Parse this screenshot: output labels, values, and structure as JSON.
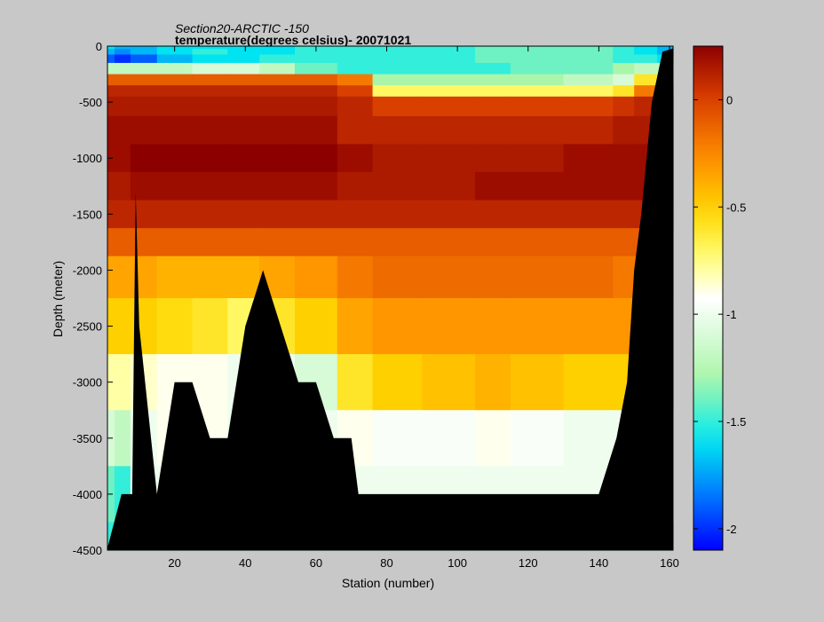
{
  "chart_data": {
    "type": "heatmap",
    "title": "Section20-ARCTIC  -150",
    "subtitle": "temperature(degrees  celsius)- 20071021",
    "xlabel": "Station (number)",
    "ylabel": "Depth (meter)",
    "xlim": [
      1,
      161
    ],
    "ylim": [
      -4500,
      0
    ],
    "x_ticks": [
      20,
      40,
      60,
      80,
      100,
      120,
      140,
      160
    ],
    "y_ticks": [
      0,
      -500,
      -1000,
      -1500,
      -2000,
      -2500,
      -3000,
      -3500,
      -4000,
      -4500
    ],
    "colorbar": {
      "range": [
        -2.1,
        0.25
      ],
      "ticks": [
        0,
        -0.5,
        -1,
        -1.5,
        -2
      ],
      "colormap": "jet-like: blue-cyan-white-yellow-orange-darkred"
    },
    "depth_levels": [
      0,
      -50,
      -100,
      -200,
      -300,
      -400,
      -500,
      -750,
      -1000,
      -1250,
      -1500,
      -1750,
      -2000,
      -2500,
      -3000,
      -3500,
      -4000,
      -4500
    ],
    "stations": [
      1,
      5,
      10,
      20,
      30,
      40,
      48,
      60,
      72,
      80,
      100,
      110,
      120,
      140,
      148,
      152,
      161
    ],
    "temperature": [
      [
        -1.6,
        -1.7,
        -1.7,
        -1.6,
        -1.6,
        -1.6,
        -1.6,
        -1.5,
        -1.5,
        -1.5,
        -1.5,
        -1.4,
        -1.4,
        -1.4,
        -1.5,
        -1.6,
        -1.7
      ],
      [
        -1.7,
        -1.8,
        -1.7,
        -1.6,
        -1.5,
        -1.6,
        -1.6,
        -1.5,
        -1.5,
        -1.5,
        -1.5,
        -1.4,
        -1.4,
        -1.4,
        -1.5,
        -1.6,
        -1.7
      ],
      [
        -1.9,
        -2.0,
        -1.9,
        -1.7,
        -1.6,
        -1.6,
        -1.5,
        -1.5,
        -1.5,
        -1.5,
        -1.5,
        -1.4,
        -1.4,
        -1.4,
        -1.5,
        -1.5,
        -1.6
      ],
      [
        -1.2,
        -1.2,
        -1.2,
        -1.2,
        -1.1,
        -1.1,
        -1.2,
        -1.4,
        -1.5,
        -1.5,
        -1.5,
        -1.5,
        -1.4,
        -1.4,
        -1.3,
        -1.2,
        -1.2
      ],
      [
        -0.1,
        -0.1,
        -0.1,
        -0.1,
        -0.1,
        -0.1,
        -0.1,
        -0.1,
        -0.2,
        -1.3,
        -1.3,
        -1.3,
        -1.3,
        -1.2,
        -1.1,
        -0.6,
        -0.6
      ],
      [
        0.1,
        0.1,
        0.1,
        0.1,
        0.1,
        0.1,
        0.1,
        0.1,
        0.0,
        -0.7,
        -0.7,
        -0.7,
        -0.7,
        -0.7,
        -0.6,
        -0.2,
        -0.2
      ],
      [
        0.15,
        0.15,
        0.15,
        0.15,
        0.15,
        0.15,
        0.15,
        0.15,
        0.1,
        0.0,
        0.0,
        0.0,
        0.0,
        0.0,
        0.05,
        0.1,
        0.1
      ],
      [
        0.2,
        0.2,
        0.2,
        0.2,
        0.2,
        0.2,
        0.2,
        0.2,
        0.1,
        0.1,
        0.1,
        0.1,
        0.1,
        0.1,
        0.15,
        0.15,
        0.15
      ],
      [
        0.2,
        0.2,
        0.25,
        0.25,
        0.25,
        0.25,
        0.25,
        0.25,
        0.2,
        0.15,
        0.15,
        0.15,
        0.15,
        0.2,
        0.2,
        0.2,
        0.2
      ],
      [
        0.15,
        0.15,
        0.2,
        0.2,
        0.2,
        0.2,
        0.2,
        0.2,
        0.15,
        0.15,
        0.15,
        0.2,
        0.2,
        0.2,
        0.2,
        0.2,
        0.2
      ],
      [
        0.1,
        0.1,
        0.1,
        0.1,
        0.1,
        0.1,
        0.1,
        0.1,
        0.1,
        0.1,
        0.1,
        0.1,
        0.1,
        0.1,
        0.1,
        0.1,
        0.1
      ],
      [
        -0.1,
        -0.1,
        -0.1,
        -0.1,
        -0.1,
        -0.1,
        -0.1,
        -0.1,
        -0.1,
        -0.1,
        -0.1,
        -0.1,
        -0.1,
        -0.1,
        -0.1,
        -0.1,
        -0.1
      ],
      [
        -0.35,
        -0.35,
        -0.35,
        -0.4,
        -0.4,
        -0.4,
        -0.35,
        -0.3,
        -0.2,
        -0.15,
        -0.15,
        -0.15,
        -0.15,
        -0.15,
        -0.2,
        -0.2,
        -0.2
      ],
      [
        -0.5,
        -0.5,
        -0.5,
        -0.55,
        -0.6,
        -0.7,
        -0.6,
        -0.5,
        -0.35,
        -0.3,
        -0.3,
        -0.3,
        -0.3,
        -0.3,
        -0.3,
        -0.3,
        -0.3
      ],
      [
        -0.8,
        -0.8,
        -0.85,
        -0.9,
        -0.9,
        -1.0,
        -1.0,
        -1.1,
        -0.6,
        -0.5,
        -0.45,
        -0.4,
        -0.45,
        -0.5,
        -0.5,
        -0.5,
        -0.5
      ],
      [
        -1.1,
        -1.2,
        -1.0,
        -0.9,
        -0.9,
        -1.0,
        -1.0,
        -1.0,
        -0.9,
        -0.95,
        -0.95,
        -0.9,
        -0.95,
        -1.0,
        -1.0,
        -1.0,
        -1.0
      ],
      [
        -1.4,
        -1.5,
        -1.0,
        -1.0,
        -1.0,
        -1.0,
        -1.0,
        -1.0,
        -1.0,
        -1.0,
        -1.0,
        -1.0,
        -1.0,
        -1.0,
        -1.0,
        -1.0,
        -1.0
      ],
      [
        -1.5,
        -1.5,
        -1.5,
        -1.5,
        -1.5,
        -1.5,
        -1.5,
        -1.5,
        -1.5,
        -1.5,
        -1.5,
        -1.5,
        -1.5,
        -1.5,
        -1.5,
        -1.5,
        -1.5
      ]
    ],
    "bathymetry": {
      "stations": [
        1,
        5,
        8,
        9,
        10,
        15,
        20,
        25,
        30,
        35,
        40,
        45,
        50,
        55,
        60,
        65,
        70,
        72,
        80,
        100,
        120,
        140,
        145,
        148,
        150,
        152,
        155,
        158,
        161
      ],
      "bottom_depth": [
        -4480,
        -4000,
        -4000,
        -1300,
        -2500,
        -4000,
        -3000,
        -3000,
        -3500,
        -3500,
        -2500,
        -2000,
        -2500,
        -3000,
        -3000,
        -3500,
        -3500,
        -4000,
        -4000,
        -4000,
        -4000,
        -4000,
        -3500,
        -3000,
        -2000,
        -1500,
        -500,
        -50,
        -20
      ]
    }
  }
}
